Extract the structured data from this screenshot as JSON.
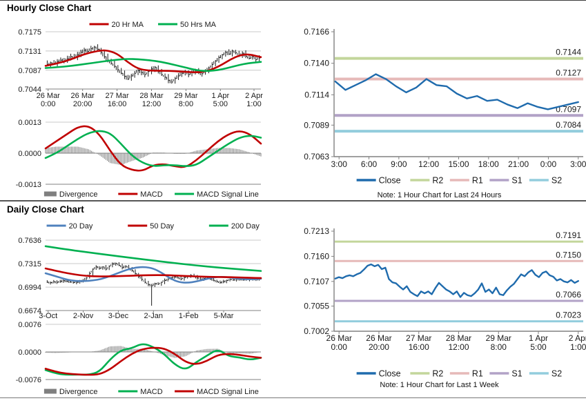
{
  "sections": [
    {
      "title": "Hourly Close Chart"
    },
    {
      "title": "Daily Close Chart"
    }
  ],
  "colors": {
    "ma_red": "#C00000",
    "ma_green": "#00B050",
    "ma_blue": "#4F81BD",
    "close_blue": "#1F6BAD",
    "r2": "#C3D69B",
    "r1": "#E6B9B8",
    "s1": "#B2A2C7",
    "s2": "#93CDDD",
    "divergence": "#7F7F7F",
    "grid": "#C8C8C8",
    "axis": "#808080",
    "candle": "#1A1A1A"
  },
  "chart_data": [
    {
      "id": "hourly_price",
      "type": "candlestick",
      "ylim": [
        0.7044,
        0.7175
      ],
      "ytick_labels": [
        "0.7175",
        "0.7131",
        "0.7087",
        "0.7044"
      ],
      "xtick_labels": [
        [
          "26 Mar",
          "0:00"
        ],
        [
          "26 Mar",
          "20:00"
        ],
        [
          "27 Mar",
          "16:00"
        ],
        [
          "28 Mar",
          "12:00"
        ],
        [
          "29 Mar",
          "8:00"
        ],
        [
          "1 Apr",
          "5:00"
        ],
        [
          "2 Apr",
          "1:00"
        ]
      ],
      "close": [
        0.71,
        0.7104,
        0.7102,
        0.7107,
        0.711,
        0.7108,
        0.7113,
        0.7118,
        0.7116,
        0.7122,
        0.7128,
        0.7133,
        0.713,
        0.7136,
        0.714,
        0.7135,
        0.7128,
        0.7118,
        0.711,
        0.7103,
        0.7096,
        0.7088,
        0.708,
        0.7073,
        0.7067,
        0.7074,
        0.708,
        0.7086,
        0.7082,
        0.7077,
        0.7084,
        0.709,
        0.7094,
        0.7084,
        0.7077,
        0.7071,
        0.7064,
        0.706,
        0.7068,
        0.7074,
        0.708,
        0.7083,
        0.7077,
        0.7082,
        0.7086,
        0.7081,
        0.7079,
        0.7085,
        0.7092,
        0.71,
        0.7108,
        0.7116,
        0.7122,
        0.7128,
        0.7124,
        0.7131,
        0.7127,
        0.7121,
        0.7126,
        0.7119,
        0.7114,
        0.7118,
        0.7111,
        0.7115
      ],
      "series": [
        {
          "name": "20 Hr MA",
          "color": "#C00000",
          "x": [
            0,
            0.06,
            0.12,
            0.18,
            0.24,
            0.28,
            0.33,
            0.38,
            0.43,
            0.48,
            0.54,
            0.6,
            0.66,
            0.7,
            0.74,
            0.78,
            0.82,
            0.86,
            0.9,
            0.94,
            1
          ],
          "y": [
            0.7097,
            0.7103,
            0.7112,
            0.7124,
            0.7131,
            0.7133,
            0.7126,
            0.7106,
            0.709,
            0.7086,
            0.7086,
            0.7085,
            0.7083,
            0.7082,
            0.7084,
            0.709,
            0.71,
            0.7112,
            0.7121,
            0.7124,
            0.7117
          ]
        },
        {
          "name": "50 Hrs MA",
          "color": "#00B050",
          "x": [
            0,
            0.06,
            0.12,
            0.18,
            0.24,
            0.28,
            0.33,
            0.38,
            0.43,
            0.48,
            0.54,
            0.6,
            0.66,
            0.7,
            0.74,
            0.78,
            0.82,
            0.86,
            0.9,
            0.94,
            1
          ],
          "y": [
            0.7092,
            0.7094,
            0.7097,
            0.7101,
            0.7105,
            0.7108,
            0.7111,
            0.7113,
            0.7112,
            0.711,
            0.7106,
            0.7099,
            0.7092,
            0.7087,
            0.7085,
            0.7086,
            0.7089,
            0.7094,
            0.7099,
            0.7103,
            0.7106
          ]
        }
      ]
    },
    {
      "id": "hourly_macd",
      "type": "macd",
      "ylim": [
        -0.0013,
        0.0013
      ],
      "ytick_labels": [
        "0.0013",
        "0.0000",
        "-0.0013"
      ],
      "divergence": {
        "name": "Divergence",
        "color": "#7F7F7F"
      },
      "macd": {
        "name": "MACD",
        "color": "#C00000",
        "x": [
          0,
          0.05,
          0.1,
          0.15,
          0.2,
          0.25,
          0.3,
          0.35,
          0.4,
          0.45,
          0.5,
          0.55,
          0.6,
          0.65,
          0.7,
          0.75,
          0.8,
          0.85,
          0.9,
          0.95,
          1
        ],
        "y": [
          0.0002,
          0.0005,
          0.0008,
          0.0011,
          0.00115,
          0.0008,
          0.0001,
          -0.0005,
          -0.0007,
          -0.00075,
          -0.0005,
          -0.00045,
          -0.00055,
          -0.0006,
          -0.0003,
          0.0001,
          0.0005,
          0.0008,
          0.00095,
          0.0008,
          0.0004
        ]
      },
      "signal": {
        "name": "MACD Signal Line",
        "color": "#00B050",
        "x": [
          0,
          0.05,
          0.1,
          0.15,
          0.2,
          0.25,
          0.3,
          0.35,
          0.4,
          0.45,
          0.5,
          0.55,
          0.6,
          0.65,
          0.7,
          0.75,
          0.8,
          0.85,
          0.9,
          0.95,
          1
        ],
        "y": [
          -0.0002,
          0.0,
          0.0003,
          0.0006,
          0.00085,
          0.00095,
          0.00085,
          0.0004,
          -0.0001,
          -0.0004,
          -0.00055,
          -0.0005,
          -0.0005,
          -0.00055,
          -0.0005,
          -0.0002,
          0.0001,
          0.0004,
          0.00065,
          0.00075,
          0.00065
        ]
      }
    },
    {
      "id": "hourly_pivot",
      "type": "line",
      "ylim": [
        0.7063,
        0.7166
      ],
      "ytick_labels": [
        "0.7166",
        "0.7140",
        "0.7114",
        "0.7089",
        "0.7063"
      ],
      "xtick_labels": [
        "3:00",
        "6:00",
        "9:00",
        "12:00",
        "15:00",
        "18:00",
        "21:00",
        "0:00",
        "3:00"
      ],
      "close": {
        "name": "Close",
        "color": "#1F6BAD",
        "values": [
          0.7125,
          0.7118,
          0.7122,
          0.7126,
          0.7131,
          0.7127,
          0.7121,
          0.7116,
          0.712,
          0.7127,
          0.7122,
          0.7121,
          0.7115,
          0.7111,
          0.7113,
          0.7109,
          0.711,
          0.7106,
          0.7103,
          0.7107,
          0.7104,
          0.7102,
          0.7104,
          0.7106,
          0.7108
        ]
      },
      "levels": [
        {
          "name": "R2",
          "label": "0.7144",
          "value": 0.7144,
          "color": "#C3D69B"
        },
        {
          "name": "R1",
          "label": "0.7127",
          "value": 0.7127,
          "color": "#E6B9B8"
        },
        {
          "name": "S1",
          "label": "0.7097",
          "value": 0.7097,
          "color": "#B2A2C7"
        },
        {
          "name": "S2",
          "label": "0.7084",
          "value": 0.7084,
          "color": "#93CDDD"
        }
      ],
      "note": "Note: 1 Hour Chart for Last 24 Hours"
    },
    {
      "id": "daily_price",
      "type": "candlestick",
      "ylim": [
        0.6674,
        0.7636
      ],
      "ytick_labels": [
        "0.7636",
        "0.7315",
        "0.6994",
        "0.6674"
      ],
      "xtick_labels": [
        "3-Oct",
        "2-Nov",
        "3-Dec",
        "2-Jan",
        "1-Feb",
        "5-Mar"
      ],
      "close": [
        0.7062,
        0.7055,
        0.7068,
        0.706,
        0.7072,
        0.7082,
        0.7075,
        0.7065,
        0.7055,
        0.706,
        0.707,
        0.7085,
        0.712,
        0.718,
        0.724,
        0.727,
        0.725,
        0.727,
        0.724,
        0.728,
        0.731,
        0.732,
        0.729,
        0.726,
        0.728,
        0.725,
        0.722,
        0.718,
        0.714,
        0.71,
        0.706,
        0.703,
        0.7012,
        0.704,
        0.7035,
        0.706,
        0.7085,
        0.7105,
        0.712,
        0.7135,
        0.712,
        0.7105,
        0.7125,
        0.7138,
        0.7155,
        0.714,
        0.7118,
        0.7098,
        0.7112,
        0.7125,
        0.7105,
        0.7088,
        0.707,
        0.7055,
        0.7068,
        0.7085,
        0.71,
        0.7092,
        0.7105,
        0.7098,
        0.709,
        0.71,
        0.7095,
        0.7102,
        0.7098,
        0.7104
      ],
      "spike": {
        "index": 32,
        "low": 0.674
      },
      "series": [
        {
          "name": "20 Day",
          "color": "#4F81BD",
          "x": [
            0,
            0.05,
            0.1,
            0.14,
            0.18,
            0.22,
            0.26,
            0.3,
            0.34,
            0.38,
            0.42,
            0.46,
            0.5,
            0.54,
            0.58,
            0.62,
            0.66,
            0.7,
            0.74,
            0.78,
            0.82,
            0.86,
            0.9,
            0.95,
            1
          ],
          "y": [
            0.7183,
            0.714,
            0.7095,
            0.7078,
            0.7076,
            0.7085,
            0.7105,
            0.7145,
            0.719,
            0.7235,
            0.7262,
            0.727,
            0.725,
            0.719,
            0.711,
            0.706,
            0.7053,
            0.707,
            0.71,
            0.7128,
            0.7135,
            0.7125,
            0.7108,
            0.71,
            0.7108
          ]
        },
        {
          "name": "50 Day",
          "color": "#C00000",
          "x": [
            0,
            0.05,
            0.1,
            0.14,
            0.18,
            0.22,
            0.26,
            0.3,
            0.34,
            0.38,
            0.42,
            0.46,
            0.5,
            0.54,
            0.58,
            0.62,
            0.66,
            0.7,
            0.74,
            0.78,
            0.82,
            0.86,
            0.9,
            0.95,
            1
          ],
          "y": [
            0.7249,
            0.7215,
            0.7185,
            0.7165,
            0.715,
            0.7143,
            0.714,
            0.7141,
            0.7144,
            0.7148,
            0.7152,
            0.7156,
            0.7158,
            0.7158,
            0.7155,
            0.715,
            0.7144,
            0.714,
            0.7136,
            0.7133,
            0.7132,
            0.713,
            0.7126,
            0.7121,
            0.7118
          ]
        },
        {
          "name": "200 Day",
          "color": "#00B050",
          "x": [
            0,
            0.1,
            0.2,
            0.3,
            0.4,
            0.5,
            0.6,
            0.7,
            0.8,
            0.9,
            1
          ],
          "y": [
            0.7553,
            0.7508,
            0.7468,
            0.743,
            0.7393,
            0.7357,
            0.7322,
            0.729,
            0.7262,
            0.7238,
            0.7215
          ]
        }
      ]
    },
    {
      "id": "daily_macd",
      "type": "macd",
      "ylim": [
        -0.0076,
        0.0076
      ],
      "ytick_labels": [
        "0.0076",
        "0.0000",
        "-0.0076"
      ],
      "divergence": {
        "name": "Divergence",
        "color": "#7F7F7F"
      },
      "macd": {
        "name": "MACD",
        "color": "#00B050",
        "x": [
          0,
          0.05,
          0.1,
          0.15,
          0.2,
          0.25,
          0.3,
          0.35,
          0.4,
          0.45,
          0.5,
          0.55,
          0.6,
          0.65,
          0.7,
          0.75,
          0.8,
          0.85,
          0.9,
          0.95,
          1
        ],
        "y": [
          -0.005,
          -0.006,
          -0.0063,
          -0.0062,
          -0.0063,
          -0.0055,
          -0.002,
          0.0005,
          0.001,
          0.0024,
          0.0014,
          -0.0005,
          -0.0035,
          -0.005,
          -0.0028,
          -0.001,
          0.0008,
          -0.0012,
          -0.0015,
          -0.0022,
          -0.0016
        ]
      },
      "signal": {
        "name": "MACD Signal Line",
        "color": "#C00000",
        "x": [
          0,
          0.05,
          0.1,
          0.15,
          0.2,
          0.25,
          0.3,
          0.35,
          0.4,
          0.45,
          0.5,
          0.55,
          0.6,
          0.65,
          0.7,
          0.75,
          0.8,
          0.85,
          0.9,
          0.95,
          1
        ],
        "y": [
          -0.0046,
          -0.0055,
          -0.006,
          -0.0062,
          -0.0063,
          -0.0062,
          -0.0048,
          -0.0025,
          -0.0005,
          0.0008,
          0.0012,
          0.001,
          -0.0005,
          -0.0028,
          -0.0035,
          -0.0025,
          -0.0008,
          -0.0005,
          -0.0008,
          -0.0013,
          -0.0016
        ]
      }
    },
    {
      "id": "weekly_pivot",
      "type": "line",
      "ylim": [
        0.7002,
        0.7213
      ],
      "ytick_labels": [
        "0.7213",
        "0.7160",
        "0.7107",
        "0.7055",
        "0.7002"
      ],
      "xtick_labels": [
        [
          "26 Mar",
          "0:00"
        ],
        [
          "26 Mar",
          "20:00"
        ],
        [
          "27 Mar",
          "16:00"
        ],
        [
          "28 Mar",
          "12:00"
        ],
        [
          "29 Mar",
          "8:00"
        ],
        [
          "1 Apr",
          "5:00"
        ],
        [
          "2 Apr",
          "1:00"
        ]
      ],
      "close": {
        "name": "Close",
        "color": "#1F6BAD",
        "values": [
          0.7113,
          0.7116,
          0.7114,
          0.7118,
          0.712,
          0.7118,
          0.7122,
          0.7125,
          0.7132,
          0.714,
          0.7143,
          0.7139,
          0.7142,
          0.7133,
          0.7136,
          0.7112,
          0.7105,
          0.7103,
          0.7096,
          0.709,
          0.7097,
          0.7085,
          0.708,
          0.7076,
          0.7086,
          0.7082,
          0.7086,
          0.708,
          0.7093,
          0.7104,
          0.7097,
          0.709,
          0.7086,
          0.708,
          0.7086,
          0.7074,
          0.7083,
          0.7078,
          0.7076,
          0.7082,
          0.709,
          0.7103,
          0.7085,
          0.709,
          0.7082,
          0.7094,
          0.708,
          0.7078,
          0.7088,
          0.7096,
          0.7102,
          0.7112,
          0.7122,
          0.7118,
          0.7126,
          0.7131,
          0.7121,
          0.7116,
          0.7125,
          0.7128,
          0.712,
          0.7117,
          0.7109,
          0.7112,
          0.7107,
          0.7105,
          0.711,
          0.7104,
          0.7108
        ]
      },
      "levels": [
        {
          "name": "R2",
          "label": "0.7191",
          "value": 0.7191,
          "color": "#C3D69B"
        },
        {
          "name": "R1",
          "label": "0.7150",
          "value": 0.715,
          "color": "#E6B9B8"
        },
        {
          "name": "S1",
          "label": "0.7066",
          "value": 0.7066,
          "color": "#B2A2C7"
        },
        {
          "name": "S2",
          "label": "0.7023",
          "value": 0.7023,
          "color": "#93CDDD"
        }
      ],
      "note": "Note: 1 Hour Chart for Last 1 Week"
    }
  ]
}
